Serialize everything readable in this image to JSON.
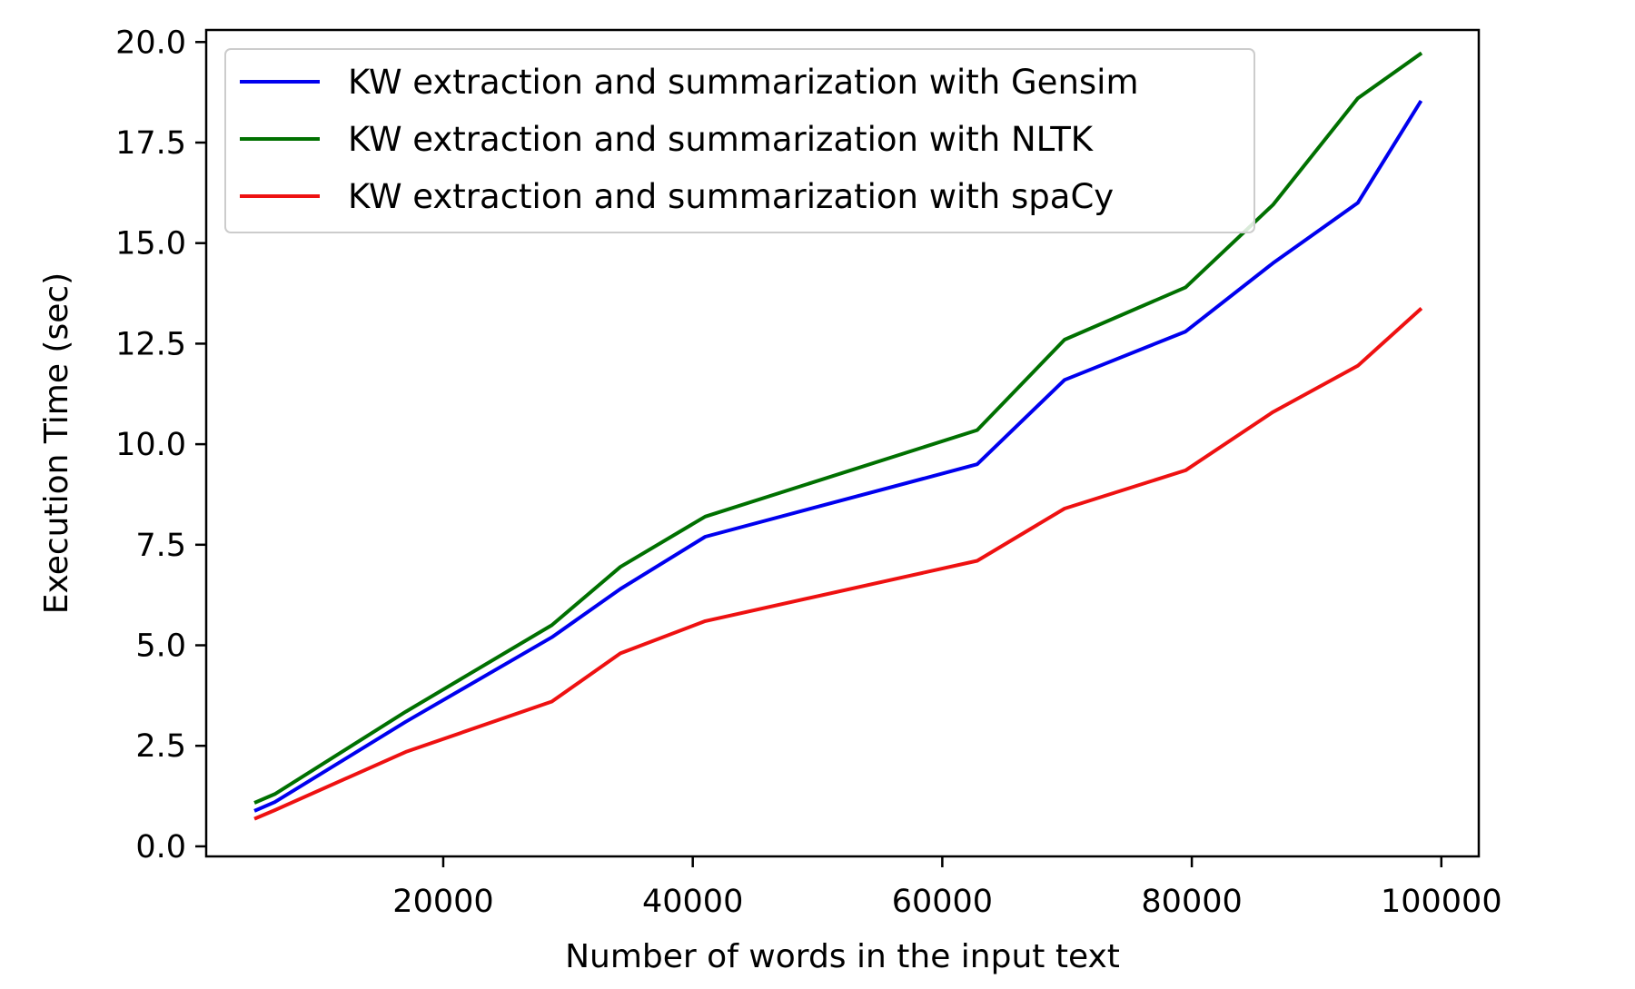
{
  "chart_data": {
    "type": "line",
    "title": "",
    "xlabel": "Number of words in the input text",
    "ylabel": "Execution Time (sec)",
    "xlim": [
      1000,
      103000
    ],
    "ylim": [
      -0.25,
      20.3
    ],
    "x_ticks": [
      20000,
      40000,
      60000,
      80000,
      100000
    ],
    "x_tick_labels": [
      "20000",
      "40000",
      "60000",
      "80000",
      "100000"
    ],
    "y_ticks": [
      0,
      2.5,
      5,
      7.5,
      10,
      12.5,
      15,
      17.5,
      20
    ],
    "y_tick_labels": [
      "0.0",
      "2.5",
      "5.0",
      "7.5",
      "10.0",
      "12.5",
      "15.0",
      "17.5",
      "20.0"
    ],
    "grid": false,
    "legend_position": "top-left",
    "series": [
      {
        "name": "KW extraction and summarization with Gensim",
        "color": "#0000ee",
        "x": [
          5000,
          6500,
          17000,
          28700,
          34200,
          41000,
          62800,
          69800,
          79500,
          86500,
          93300,
          98300
        ],
        "y": [
          0.9,
          1.1,
          3.1,
          5.2,
          6.4,
          7.7,
          9.5,
          11.6,
          12.8,
          14.5,
          16.0,
          18.5
        ]
      },
      {
        "name": "KW extraction and summarization with NLTK",
        "color": "#007000",
        "x": [
          5000,
          6500,
          17000,
          28700,
          34200,
          41000,
          62800,
          69800,
          79500,
          86500,
          93300,
          98300
        ],
        "y": [
          1.1,
          1.3,
          3.35,
          5.5,
          6.95,
          8.2,
          10.35,
          12.6,
          13.9,
          15.95,
          18.6,
          19.7
        ]
      },
      {
        "name": "KW extraction and summarization with spaCy",
        "color": "#ee1111",
        "x": [
          5000,
          6500,
          17000,
          28700,
          34200,
          41000,
          62800,
          69800,
          79500,
          86500,
          93300,
          98300
        ],
        "y": [
          0.7,
          0.9,
          2.35,
          3.6,
          4.8,
          5.6,
          7.1,
          8.4,
          9.35,
          10.8,
          11.95,
          13.35
        ]
      }
    ]
  }
}
